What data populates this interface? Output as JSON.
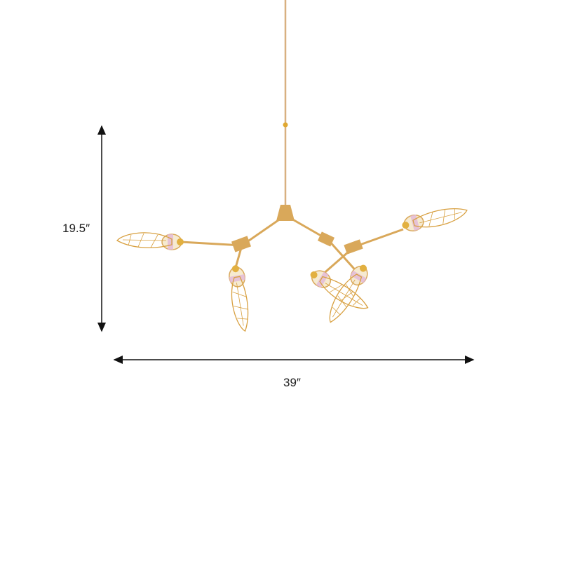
{
  "product": {
    "height_label": "19.5″",
    "width_label": "39″",
    "lamp_count": 6
  },
  "colors": {
    "gold": "#d9a85a",
    "wing": "#d8a040",
    "glass_pink": "#e2b8d8",
    "dimension_line": "#111111"
  }
}
